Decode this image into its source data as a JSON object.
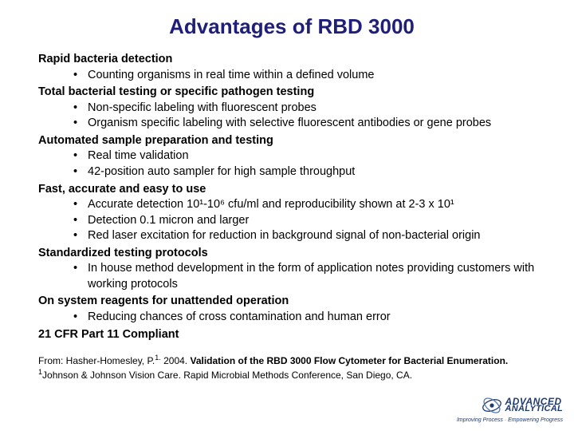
{
  "title": "Advantages of RBD 3000",
  "sections": [
    {
      "head": "Rapid bacteria detection",
      "bullets": [
        "Counting organisms in real time within a defined volume"
      ]
    },
    {
      "head": "Total bacterial testing or specific pathogen testing",
      "bullets": [
        "Non-specific labeling with fluorescent probes",
        "Organism specific labeling with selective fluorescent antibodies or gene probes"
      ]
    },
    {
      "head": "Automated sample preparation and testing",
      "bullets": [
        "Real time validation",
        "42-position auto sampler for high sample throughput"
      ]
    },
    {
      "head": "Fast, accurate and easy to use",
      "bullets": [
        "Accurate detection 10¹-10⁶ cfu/ml and reproducibility shown at 2-3 x 10¹",
        "Detection 0.1 micron and larger",
        "Red laser excitation for reduction in background signal of non-bacterial origin"
      ]
    },
    {
      "head": "Standardized testing protocols",
      "bullets": [
        "In house method development in the form of application notes providing customers with working protocols"
      ]
    },
    {
      "head": "On system reagents for unattended operation",
      "bullets": [
        "Reducing chances of cross contamination and human error"
      ]
    },
    {
      "head": "21 CFR Part 11 Compliant",
      "bullets": []
    }
  ],
  "citation": {
    "prefix": "From: Hasher-Homesley, P.",
    "sup1": "1.",
    "mid1": " 2004. ",
    "bold": "Validation of the RBD 3000 Flow Cytometer for Bacterial Enumeration.",
    "mid2": " ",
    "sup2": "1",
    "tail": "Johnson & Johnson Vision Care. Rapid Microbial Methods Conference, San Diego, CA."
  },
  "logo": {
    "line1": "ADVANCED",
    "line2": "ANALYTICAL",
    "tagline": "Improving Process · Empowering Progress",
    "color": "#1f3a6e"
  },
  "colors": {
    "title": "#1f1f7a",
    "text": "#000000",
    "background": "#ffffff"
  }
}
